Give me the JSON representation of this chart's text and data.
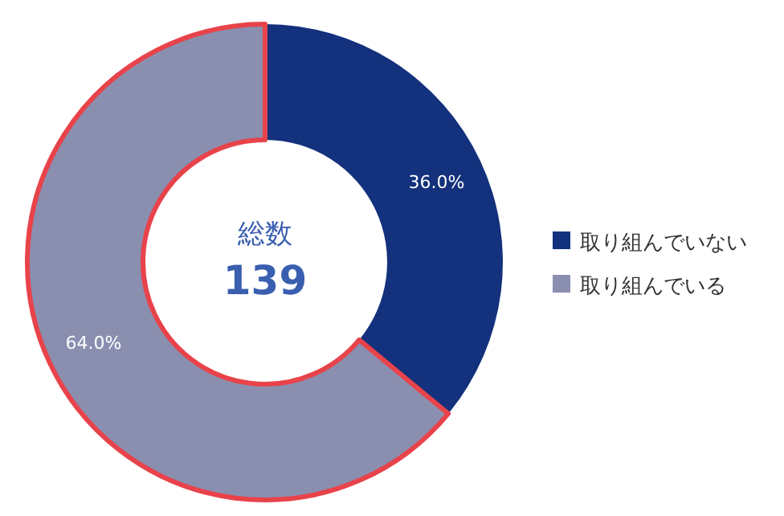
{
  "chart_data": {
    "type": "donut",
    "title": "総数",
    "annotations": [
      "139"
    ],
    "categories": [
      "取り組んでいない",
      "取り組んでいる"
    ],
    "values": [
      36.0,
      64.0
    ],
    "colors": [
      "#13317c",
      "#8a8fb0"
    ],
    "value_labels": [
      "36.0%",
      "64.0%"
    ],
    "legend": "right"
  }
}
